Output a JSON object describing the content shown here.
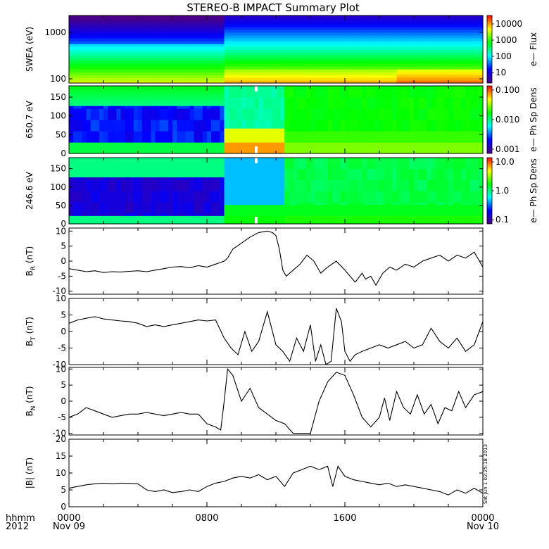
{
  "title": "STEREO-B IMPACT Summary Plot",
  "stamp": "Sat Jun 1 02:25:18 2013",
  "x_axis": {
    "tick_labels": [
      "0000",
      "0800",
      "1600",
      "0000"
    ],
    "date_labels": [
      "Nov 09",
      "",
      "",
      "Nov 10"
    ],
    "corner_top": "hhmm",
    "corner_bottom": "2012"
  },
  "chart_data": [
    {
      "type": "heatmap",
      "ylabel": "SWEA (eV)",
      "yscale": "log",
      "ylim": [
        95,
        2200
      ],
      "yticks": [
        "1000",
        "100"
      ],
      "colorbar_label": "e— Flux",
      "colorbar_ticks": [
        "10000",
        "1000",
        "100",
        "10"
      ],
      "colorbar_range_log": [
        0,
        4.5
      ],
      "colors": [
        "#4b0082",
        "#0000ff",
        "#00ffff",
        "#00ff00",
        "#ffff00",
        "#ff0000"
      ]
    },
    {
      "type": "heatmap",
      "ylabel": "650.7 eV",
      "ylim": [
        0,
        180
      ],
      "yticks": [
        "150",
        "100",
        "50",
        "0"
      ],
      "colorbar_label": "e— Ph Sp Dens",
      "colorbar_ticks": [
        "0.100",
        "0.010",
        "0.001"
      ],
      "colorbar_range": [
        0.001,
        0.1
      ]
    },
    {
      "type": "heatmap",
      "ylabel": "246.6 eV",
      "ylim": [
        0,
        180
      ],
      "yticks": [
        "150",
        "100",
        "50",
        "0"
      ],
      "colorbar_label": "e— Ph Sp Dens",
      "colorbar_ticks": [
        "10.0",
        "1.0",
        "0.1"
      ],
      "colorbar_range": [
        0.1,
        10
      ]
    },
    {
      "type": "line",
      "ylabel": "B",
      "ylabel_sub": "R",
      "ylabel_unit": "(nT)",
      "ylim": [
        -11,
        11
      ],
      "yticks": [
        "10",
        "5",
        "0",
        "-5",
        "-10"
      ],
      "x_hours": [
        0,
        0.5,
        1,
        1.5,
        2,
        2.5,
        3,
        3.5,
        4,
        4.5,
        5,
        5.5,
        6,
        6.5,
        7,
        7.5,
        8,
        8.5,
        9,
        9.2,
        9.5,
        10,
        10.5,
        11,
        11.5,
        11.8,
        12,
        12.2,
        12.4,
        12.6,
        13,
        13.4,
        13.8,
        14.2,
        14.6,
        15,
        15.5,
        16,
        16.3,
        16.6,
        17,
        17.2,
        17.5,
        17.8,
        18.2,
        18.6,
        19,
        19.5,
        20,
        20.5,
        21,
        21.5,
        22,
        22.5,
        23,
        23.5,
        24
      ],
      "values": [
        -2.5,
        -3,
        -3.5,
        -3.2,
        -3.8,
        -3.5,
        -3.6,
        -3.4,
        -3.2,
        -3.5,
        -3,
        -2.5,
        -2,
        -1.8,
        -2.2,
        -1.5,
        -2,
        -1,
        0,
        1,
        4,
        6,
        8,
        9.5,
        10,
        9.5,
        8.5,
        4,
        -3,
        -5,
        -3,
        -1,
        2,
        0,
        -4,
        -2,
        0,
        -3,
        -5,
        -7,
        -4,
        -6,
        -5,
        -8,
        -4,
        -2,
        -3,
        -1,
        -2,
        0,
        1,
        2,
        0,
        2,
        1,
        3,
        -2
      ]
    },
    {
      "type": "line",
      "ylabel": "B",
      "ylabel_sub": "T",
      "ylabel_unit": "(nT)",
      "ylim": [
        -10,
        10
      ],
      "yticks": [
        "10",
        "5",
        "0",
        "-5",
        "-10"
      ],
      "x_hours": [
        0,
        0.5,
        1,
        1.5,
        2,
        2.5,
        3,
        3.5,
        4,
        4.5,
        5,
        5.5,
        6,
        6.5,
        7,
        7.5,
        8,
        8.5,
        9,
        9.4,
        9.8,
        10.2,
        10.6,
        11,
        11.5,
        12,
        12.4,
        12.8,
        13.2,
        13.6,
        14,
        14.3,
        14.6,
        14.9,
        15.2,
        15.5,
        15.8,
        16,
        16.3,
        16.6,
        17,
        17.5,
        18,
        18.5,
        19,
        19.5,
        20,
        20.5,
        21,
        21.5,
        22,
        22.5,
        23,
        23.5,
        24
      ],
      "values": [
        2.5,
        3.5,
        4,
        4.5,
        3.8,
        3.5,
        3.2,
        3,
        2.5,
        1.5,
        2,
        1.5,
        2,
        2.5,
        3,
        3.5,
        3.2,
        3.5,
        -2,
        -5,
        -7,
        0,
        -6,
        -3,
        6,
        -4,
        -6,
        -9,
        -2,
        -6,
        2,
        -9,
        -4,
        -10,
        -9,
        7,
        3,
        -6,
        -9,
        -7,
        -6,
        -5,
        -4,
        -5,
        -4,
        -3,
        -5,
        -4,
        1,
        -3,
        -5,
        -2,
        -6,
        -4,
        3
      ]
    },
    {
      "type": "line",
      "ylabel": "B",
      "ylabel_sub": "N",
      "ylabel_unit": "(nT)",
      "ylim": [
        -10.5,
        10.5
      ],
      "yticks": [
        "10",
        "5",
        "0",
        "-5",
        "-10"
      ],
      "x_hours": [
        0,
        0.5,
        1,
        1.5,
        2,
        2.5,
        3,
        3.5,
        4,
        4.5,
        5,
        5.5,
        6,
        6.5,
        7,
        7.5,
        8,
        8.5,
        8.8,
        9,
        9.2,
        9.5,
        10,
        10.5,
        11,
        11.5,
        12,
        12.5,
        13,
        13.5,
        14,
        14.5,
        15,
        15.5,
        16,
        16.5,
        17,
        17.5,
        18,
        18.3,
        18.6,
        19,
        19.4,
        19.8,
        20.2,
        20.6,
        21,
        21.4,
        21.8,
        22.2,
        22.6,
        23,
        23.5,
        24
      ],
      "values": [
        -5,
        -4,
        -2,
        -3,
        -4,
        -5,
        -4.5,
        -4,
        -4,
        -3.5,
        -4,
        -4.5,
        -4,
        -3.5,
        -4,
        -4,
        -7,
        -8,
        -9,
        0,
        10,
        8,
        0,
        4,
        -2,
        -4,
        -6,
        -7,
        -10,
        -10,
        -10,
        0,
        6,
        9,
        8,
        2,
        -5,
        -8,
        -5,
        1,
        -6,
        3,
        -2,
        -4,
        2,
        -4,
        -1,
        -7,
        -2,
        -3,
        3,
        -2,
        2,
        3
      ]
    },
    {
      "type": "line",
      "ylabel": "|B|",
      "ylabel_unit": "(nT)",
      "ylim": [
        0,
        20
      ],
      "yticks": [
        "20",
        "15",
        "10",
        "5",
        "0"
      ],
      "x_hours": [
        0,
        0.5,
        1,
        1.5,
        2,
        2.5,
        3,
        3.5,
        4,
        4.5,
        5,
        5.5,
        6,
        6.5,
        7,
        7.5,
        8,
        8.5,
        9,
        9.5,
        10,
        10.5,
        11,
        11.5,
        12,
        12.5,
        13,
        13.5,
        14,
        14.5,
        15,
        15.3,
        15.6,
        16,
        16.5,
        17,
        17.5,
        18,
        18.5,
        19,
        19.5,
        20,
        20.5,
        21,
        21.5,
        22,
        22.5,
        23,
        23.5,
        24
      ],
      "values": [
        5.5,
        6,
        6.5,
        6.8,
        7,
        6.8,
        7,
        6.9,
        6.8,
        5,
        4.5,
        5,
        4.2,
        4.5,
        5,
        4.5,
        6,
        7,
        7.5,
        8.5,
        9,
        8.5,
        9.5,
        8,
        9,
        6,
        10,
        11,
        12,
        11,
        12,
        6,
        12,
        9,
        8,
        7.5,
        7,
        6.5,
        7,
        6,
        6.5,
        6,
        5.5,
        5,
        4.5,
        3.5,
        5,
        4,
        5.5,
        4
      ]
    }
  ]
}
